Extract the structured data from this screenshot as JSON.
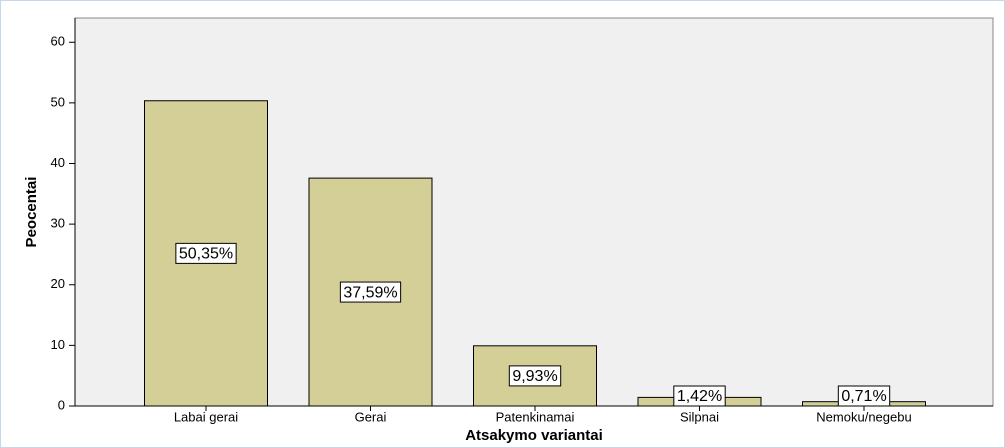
{
  "chart_data": {
    "type": "bar",
    "x_label": "Atsakymo variantai",
    "y_label": "Peocentai",
    "categories": [
      "Labai gerai",
      "Gerai",
      "Patenkinamai",
      "Silpnai",
      "Nemoku/negebu"
    ],
    "values": [
      50.35,
      37.59,
      9.93,
      1.42,
      0.71
    ],
    "value_labels": [
      "50,35%",
      "37,59%",
      "9,93%",
      "1,42%",
      "0,71%"
    ],
    "color": "#d4cf96",
    "ylim": [
      0,
      64
    ],
    "yticks": [
      0,
      10,
      20,
      30,
      40,
      50,
      60
    ],
    "grid": false
  }
}
